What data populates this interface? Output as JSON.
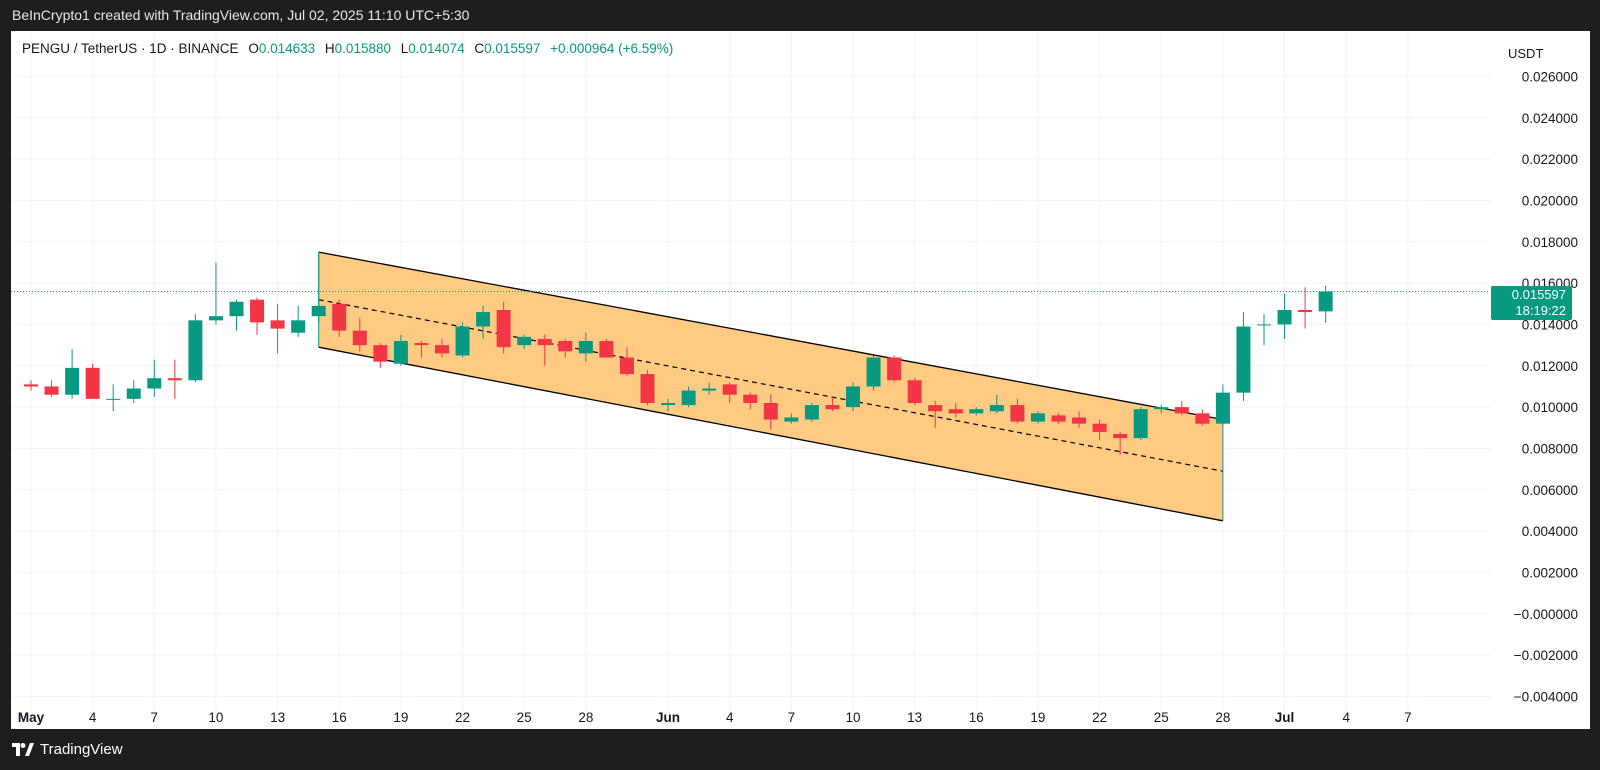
{
  "header": {
    "attribution": "BeInCrypto1 created with TradingView.com, Jul 02, 2025 11:10 UTC+5:30"
  },
  "legend": {
    "symbol": "PENGU / TetherUS · 1D · BINANCE",
    "open_label": "O",
    "open": "0.014633",
    "high_label": "H",
    "high": "0.015880",
    "low_label": "L",
    "low": "0.014074",
    "close_label": "C",
    "close": "0.015597",
    "change": "+0.000964 (+6.59%)"
  },
  "currency_button": "USDT",
  "price_tag": {
    "price": "0.015597",
    "countdown": "18:19:22"
  },
  "footer": {
    "brand": "TradingView"
  },
  "colors": {
    "up": "#089981",
    "down": "#f23645",
    "channel_fill": "#ffc77a",
    "background": "#ffffff",
    "frame": "#1e1e1e"
  },
  "chart_data": {
    "type": "candlestick",
    "y_axis": {
      "ticks": [
        "0.026000",
        "0.024000",
        "0.022000",
        "0.020000",
        "0.018000",
        "0.016000",
        "0.014000",
        "0.012000",
        "0.010000",
        "0.008000",
        "0.006000",
        "0.004000",
        "0.002000",
        "−0.000000",
        "−0.002000",
        "−0.004000"
      ],
      "range": [
        -0.0048,
        0.0282
      ]
    },
    "x_axis": {
      "ticks": [
        {
          "label": "May",
          "day": 0,
          "bold": true
        },
        {
          "label": "4",
          "day": 3
        },
        {
          "label": "7",
          "day": 6
        },
        {
          "label": "10",
          "day": 9
        },
        {
          "label": "13",
          "day": 12
        },
        {
          "label": "16",
          "day": 15
        },
        {
          "label": "19",
          "day": 18
        },
        {
          "label": "22",
          "day": 21
        },
        {
          "label": "25",
          "day": 24
        },
        {
          "label": "28",
          "day": 27
        },
        {
          "label": "Jun",
          "day": 31,
          "bold": true
        },
        {
          "label": "4",
          "day": 34
        },
        {
          "label": "7",
          "day": 37
        },
        {
          "label": "10",
          "day": 40
        },
        {
          "label": "13",
          "day": 43
        },
        {
          "label": "16",
          "day": 46
        },
        {
          "label": "19",
          "day": 49
        },
        {
          "label": "22",
          "day": 52
        },
        {
          "label": "25",
          "day": 55
        },
        {
          "label": "28",
          "day": 58
        },
        {
          "label": "Jul",
          "day": 61,
          "bold": true
        },
        {
          "label": "4",
          "day": 64
        },
        {
          "label": "7",
          "day": 67
        }
      ]
    },
    "candles": [
      [
        0.0111,
        0.0113,
        0.0108,
        0.011
      ],
      [
        0.011,
        0.0113,
        0.0105,
        0.0106
      ],
      [
        0.0106,
        0.0128,
        0.0104,
        0.0119
      ],
      [
        0.0119,
        0.0121,
        0.0104,
        0.0104
      ],
      [
        0.0104,
        0.0111,
        0.0098,
        0.0104
      ],
      [
        0.0104,
        0.0113,
        0.0102,
        0.0109
      ],
      [
        0.0109,
        0.0123,
        0.0105,
        0.0114
      ],
      [
        0.0114,
        0.0123,
        0.0104,
        0.0113
      ],
      [
        0.0113,
        0.0145,
        0.0112,
        0.0142
      ],
      [
        0.0142,
        0.017,
        0.014,
        0.0144
      ],
      [
        0.0144,
        0.0152,
        0.0137,
        0.0151
      ],
      [
        0.0152,
        0.0153,
        0.0135,
        0.0141
      ],
      [
        0.0142,
        0.015,
        0.0126,
        0.0138
      ],
      [
        0.0136,
        0.0149,
        0.0134,
        0.0142
      ],
      [
        0.0144,
        0.0175,
        0.0141,
        0.0149
      ],
      [
        0.015,
        0.0152,
        0.0134,
        0.0137
      ],
      [
        0.0137,
        0.0143,
        0.0127,
        0.013
      ],
      [
        0.013,
        0.0131,
        0.0119,
        0.0122
      ],
      [
        0.0121,
        0.0135,
        0.012,
        0.0132
      ],
      [
        0.0131,
        0.0132,
        0.0124,
        0.013
      ],
      [
        0.013,
        0.0133,
        0.0124,
        0.0126
      ],
      [
        0.0125,
        0.0141,
        0.0124,
        0.0139
      ],
      [
        0.0139,
        0.0149,
        0.0133,
        0.0146
      ],
      [
        0.0147,
        0.0151,
        0.0126,
        0.0129
      ],
      [
        0.013,
        0.0135,
        0.0128,
        0.0134
      ],
      [
        0.0133,
        0.0135,
        0.012,
        0.013
      ],
      [
        0.0132,
        0.0133,
        0.0124,
        0.0127
      ],
      [
        0.0126,
        0.0136,
        0.0122,
        0.0132
      ],
      [
        0.0132,
        0.0133,
        0.0124,
        0.0124
      ],
      [
        0.0124,
        0.0129,
        0.0115,
        0.0116
      ],
      [
        0.0116,
        0.0118,
        0.0101,
        0.0102
      ],
      [
        0.0101,
        0.0104,
        0.0098,
        0.0102
      ],
      [
        0.0101,
        0.011,
        0.01,
        0.0108
      ],
      [
        0.0108,
        0.0112,
        0.0106,
        0.0109
      ],
      [
        0.0111,
        0.0112,
        0.0102,
        0.0106
      ],
      [
        0.0106,
        0.0107,
        0.0099,
        0.0102
      ],
      [
        0.0102,
        0.0106,
        0.0089,
        0.0094
      ],
      [
        0.0093,
        0.0097,
        0.0092,
        0.0095
      ],
      [
        0.0094,
        0.0102,
        0.0093,
        0.0101
      ],
      [
        0.0101,
        0.0105,
        0.0098,
        0.0099
      ],
      [
        0.01,
        0.0112,
        0.0098,
        0.011
      ],
      [
        0.011,
        0.0125,
        0.0108,
        0.0124
      ],
      [
        0.0124,
        0.0125,
        0.0112,
        0.0113
      ],
      [
        0.0113,
        0.0114,
        0.0101,
        0.0102
      ],
      [
        0.0101,
        0.0103,
        0.009,
        0.0098
      ],
      [
        0.0099,
        0.0102,
        0.0095,
        0.0097
      ],
      [
        0.0097,
        0.01,
        0.0096,
        0.0099
      ],
      [
        0.0098,
        0.0106,
        0.0097,
        0.0101
      ],
      [
        0.0101,
        0.0104,
        0.0092,
        0.0093
      ],
      [
        0.0093,
        0.0098,
        0.0092,
        0.0097
      ],
      [
        0.0096,
        0.0097,
        0.0092,
        0.0093
      ],
      [
        0.0095,
        0.0098,
        0.009,
        0.0092
      ],
      [
        0.0092,
        0.0094,
        0.0084,
        0.0088
      ],
      [
        0.0087,
        0.0088,
        0.0077,
        0.0085
      ],
      [
        0.0085,
        0.01,
        0.0084,
        0.0099
      ],
      [
        0.0099,
        0.0101,
        0.0097,
        0.01
      ],
      [
        0.01,
        0.0103,
        0.0096,
        0.0097
      ],
      [
        0.0097,
        0.0099,
        0.0091,
        0.0092
      ],
      [
        0.0092,
        0.0111,
        0.0091,
        0.0107
      ],
      [
        0.0107,
        0.0146,
        0.0103,
        0.0139
      ],
      [
        0.014,
        0.0145,
        0.013,
        0.014
      ],
      [
        0.014,
        0.0155,
        0.0133,
        0.0147
      ],
      [
        0.0147,
        0.0158,
        0.0138,
        0.0146
      ],
      [
        0.014633,
        0.01588,
        0.014074,
        0.015597
      ]
    ],
    "current_price": 0.015597,
    "drawings": {
      "channel": {
        "upper": [
          [
            14,
            0.0175
          ],
          [
            58,
            0.0094
          ]
        ],
        "lower": [
          [
            14,
            0.0129
          ],
          [
            58,
            0.0045
          ]
        ],
        "midline": [
          [
            14,
            0.0152
          ],
          [
            58,
            0.0069
          ]
        ],
        "fill": "#ffc77a"
      }
    }
  }
}
